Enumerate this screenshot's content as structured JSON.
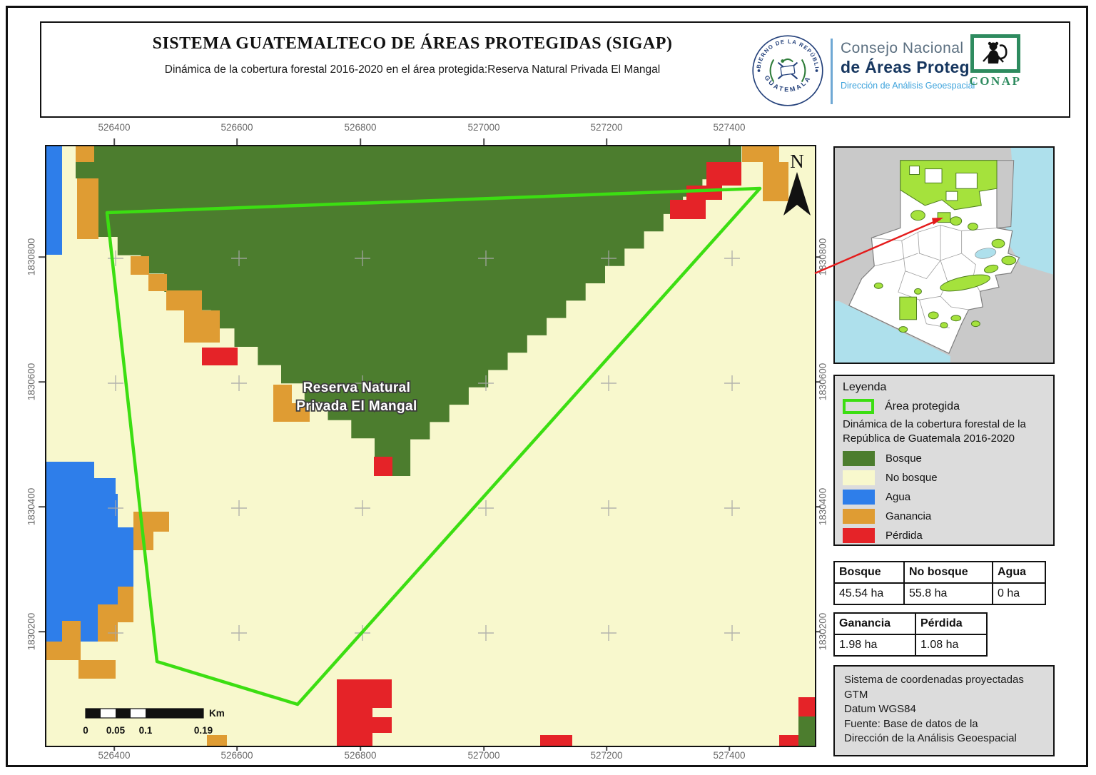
{
  "header": {
    "title": "SISTEMA GUATEMALTECO DE ÁREAS PROTEGIDAS  (SIGAP)",
    "subtitle": "Dinámica de la cobertura forestal 2016-2020 en el área protegida:Reserva Natural Privada El Mangal",
    "gov_seal": {
      "top": "GOBIERNO DE LA REPÚBLICA",
      "bottom": "GUATEMALA"
    },
    "org": {
      "line1": "Consejo Nacional",
      "line2": "de Áreas Protegidas",
      "line3": "Dirección de Análisis Geoespacial"
    },
    "conap": "CONAP"
  },
  "map": {
    "label": {
      "line1": "Reserva Natural",
      "line2": "Privada El Mangal"
    },
    "north": "N",
    "x_ticks": [
      "526400",
      "526600",
      "526800",
      "527000",
      "527200",
      "527400"
    ],
    "y_ticks": [
      "1830800",
      "1830600",
      "1830400",
      "1830200"
    ],
    "scalebar": {
      "labels": [
        "0",
        "0.05",
        "0.1",
        "0.19"
      ],
      "unit": "Km"
    }
  },
  "legend": {
    "title": "Leyenda",
    "area_item": "Área protegida",
    "subtitle": "Dinámica de la cobertura forestal de la República de Guatemala 2016-2020",
    "classes": [
      {
        "label": "Bosque",
        "key": "bosque"
      },
      {
        "label": "No bosque",
        "key": "no_bosque"
      },
      {
        "label": "Agua",
        "key": "agua"
      },
      {
        "label": "Ganancia",
        "key": "ganancia"
      },
      {
        "label": "Pérdida",
        "key": "perdida"
      }
    ]
  },
  "tables": {
    "coverage": {
      "headers": [
        "Bosque",
        "No bosque",
        "Agua"
      ],
      "values": [
        "45.54 ha",
        "55.8 ha",
        "0 ha"
      ]
    },
    "change": {
      "headers": [
        "Ganancia",
        "Pérdida"
      ],
      "values": [
        "1.98 ha",
        "1.08 ha"
      ]
    }
  },
  "crs_box": {
    "lines": [
      "Sistema de coordenadas proyectadas",
      "GTM",
      "Datum WGS84",
      "Fuente: Base de datos de la",
      "Dirección de la Análisis Geoespacial"
    ]
  },
  "colors": {
    "bosque": "#4C7D2E",
    "no_bosque": "#F8F8CD",
    "agua": "#2E7EEA",
    "ganancia": "#DF9C33",
    "perdida": "#E52328",
    "area_protegida": "#3CDE12",
    "inset_pa": "#A5E23C",
    "inset_water": "#AEE0EC",
    "leader_red": "#E41B1B",
    "conap_green": "#2E8B5F",
    "navy": "#16365F",
    "light_blue": "#3EA3DC"
  }
}
